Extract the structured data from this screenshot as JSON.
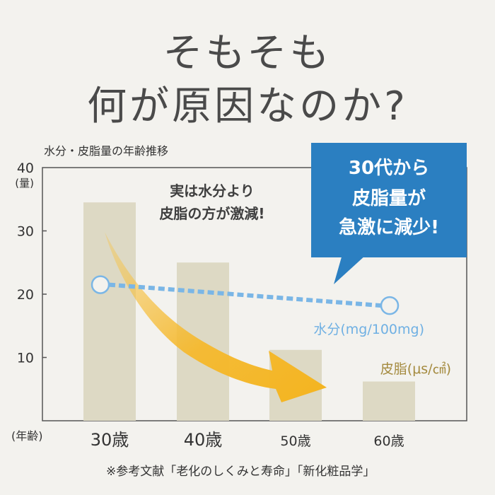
{
  "headline": {
    "line1": "そもそも",
    "line2": "何が原因なのか?"
  },
  "chart_data": {
    "type": "bar",
    "subtitle": "水分・皮脂量の年齢推移",
    "y_axis_unit": "(量)",
    "x_axis_unit": "(年齢)",
    "yticks": [
      "10",
      "20",
      "30",
      "40"
    ],
    "ylim": [
      0,
      40
    ],
    "categories": [
      "30歳",
      "40歳",
      "50歳",
      "60歳"
    ],
    "series": [
      {
        "name": "皮脂(μs/㎠)",
        "kind": "bar",
        "color": "#ddd9c4",
        "values": [
          34.5,
          25,
          11.2,
          6.2
        ]
      },
      {
        "name": "水分(mg/100mg)",
        "kind": "line",
        "color": "#7ab6e6",
        "values": [
          21.5,
          null,
          null,
          18.2
        ]
      }
    ],
    "annotations": {
      "middle": [
        "実は水分より",
        "皮脂の方が激減!"
      ],
      "callout": [
        "30代から",
        "皮脂量が",
        "急激に減少!"
      ],
      "callout_color": "#2b7fc1",
      "arrow_color": "#f5b92e"
    },
    "source_note": "※参考文献「老化のしくみと寿命」「新化粧品学」",
    "grid": false
  }
}
